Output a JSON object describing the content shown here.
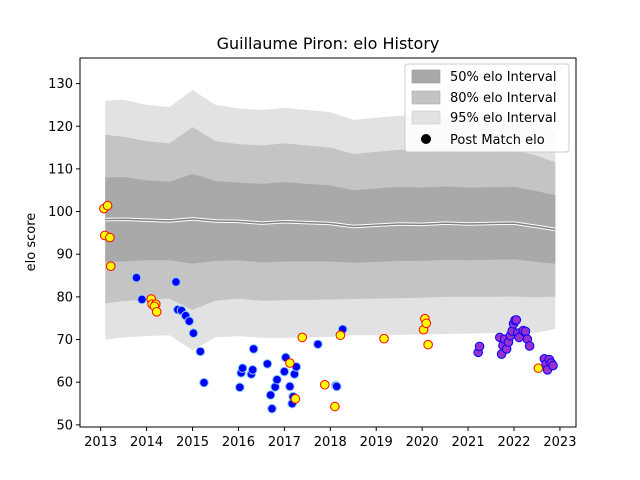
{
  "chart_data": {
    "type": "scatter",
    "title": "Guillaume Piron: elo History",
    "xlabel": "",
    "ylabel": "elo score",
    "xlim": [
      2012.55,
      2023.35
    ],
    "ylim": [
      49.5,
      136
    ],
    "xticks": [
      2013,
      2014,
      2015,
      2016,
      2017,
      2018,
      2019,
      2020,
      2021,
      2022,
      2023
    ],
    "yticks": [
      50,
      60,
      70,
      80,
      90,
      100,
      110,
      120,
      130
    ],
    "grid": false,
    "legend_position": "top-right",
    "legend": [
      {
        "label": "50% elo Interval",
        "kind": "band",
        "color": "#a9a9a9"
      },
      {
        "label": "80% elo Interval",
        "kind": "band",
        "color": "#c4c4c4"
      },
      {
        "label": "95% elo Interval",
        "kind": "band",
        "color": "#e2e2e2"
      },
      {
        "label": "Post Match elo",
        "kind": "marker",
        "color": "#000000"
      }
    ],
    "colors": {
      "band50": "#a9a9a9",
      "band80": "#c4c4c4",
      "band95": "#e2e2e2",
      "median_line": "#808080",
      "median_halo": "#ffffff",
      "win_fill": "#0000ff",
      "win_edge": "#87ceeb",
      "loss_fill": "#ffff00",
      "loss_edge": "#ff0000",
      "late_fill": "#9932cc",
      "late_edge": "#0000ff"
    },
    "median": {
      "x": [
        2013.1,
        2013.5,
        2014.0,
        2014.5,
        2015.0,
        2015.5,
        2016.0,
        2016.5,
        2017.0,
        2017.5,
        2018.0,
        2018.5,
        2019.0,
        2019.5,
        2020.0,
        2020.5,
        2021.0,
        2021.5,
        2022.0,
        2022.5,
        2022.9
      ],
      "y": [
        98.1,
        98.2,
        98.0,
        97.8,
        98.3,
        97.8,
        97.7,
        97.3,
        97.6,
        97.4,
        97.2,
        96.5,
        96.8,
        97.1,
        97.0,
        97.3,
        97.1,
        97.2,
        97.3,
        96.5,
        95.8
      ]
    },
    "band50": {
      "upper": [
        108.0,
        108.1,
        107.3,
        107.0,
        108.8,
        107.2,
        106.8,
        106.5,
        106.9,
        106.5,
        106.1,
        105.0,
        105.4,
        105.8,
        105.6,
        105.9,
        105.6,
        105.7,
        105.8,
        104.8,
        103.8
      ],
      "lower": [
        88.2,
        88.3,
        88.6,
        88.6,
        87.8,
        88.4,
        88.6,
        88.1,
        88.3,
        88.3,
        88.3,
        88.0,
        88.2,
        88.4,
        88.4,
        88.7,
        88.6,
        88.7,
        88.8,
        88.2,
        87.8
      ]
    },
    "band80": {
      "upper": [
        118.0,
        117.5,
        116.5,
        116.0,
        119.8,
        116.5,
        115.8,
        115.5,
        116.0,
        115.5,
        115.0,
        113.5,
        114.0,
        114.5,
        114.2,
        114.6,
        114.2,
        114.4,
        114.5,
        113.1,
        111.5
      ],
      "lower": [
        78.5,
        79.0,
        79.4,
        79.6,
        77.0,
        79.1,
        79.6,
        79.1,
        79.2,
        79.3,
        79.4,
        79.5,
        79.6,
        79.7,
        79.8,
        80.0,
        80.0,
        80.0,
        80.1,
        79.9,
        80.1
      ]
    },
    "band95": {
      "upper": [
        126.0,
        126.2,
        125.0,
        124.5,
        128.5,
        125.0,
        124.2,
        123.8,
        124.3,
        123.8,
        123.3,
        121.5,
        122.0,
        122.5,
        122.2,
        122.6,
        122.2,
        122.4,
        122.5,
        121.0,
        118.5
      ],
      "lower": [
        70.0,
        70.5,
        70.8,
        71.0,
        67.5,
        70.5,
        70.8,
        70.4,
        70.4,
        70.5,
        70.6,
        71.0,
        71.0,
        71.1,
        71.2,
        71.3,
        71.4,
        71.5,
        71.6,
        71.6,
        72.5
      ]
    },
    "series": [
      {
        "style": "win",
        "points": [
          [
            2013.78,
            84.5
          ],
          [
            2013.9,
            79.4
          ],
          [
            2014.64,
            83.5
          ],
          [
            2014.68,
            77.0
          ],
          [
            2014.76,
            76.8
          ],
          [
            2014.85,
            75.6
          ],
          [
            2014.93,
            74.3
          ],
          [
            2015.02,
            71.5
          ],
          [
            2015.17,
            67.2
          ],
          [
            2015.25,
            59.9
          ],
          [
            2016.03,
            58.8
          ],
          [
            2016.06,
            62.2
          ],
          [
            2016.09,
            63.3
          ],
          [
            2016.28,
            61.9
          ],
          [
            2016.31,
            62.9
          ],
          [
            2016.33,
            67.8
          ],
          [
            2016.63,
            64.3
          ],
          [
            2016.7,
            57.0
          ],
          [
            2016.73,
            53.8
          ],
          [
            2016.8,
            58.9
          ],
          [
            2016.84,
            60.6
          ],
          [
            2017.0,
            62.5
          ],
          [
            2017.03,
            65.8
          ],
          [
            2017.12,
            59.0
          ],
          [
            2017.17,
            55.0
          ],
          [
            2017.19,
            56.6
          ],
          [
            2017.22,
            61.9
          ],
          [
            2017.26,
            63.6
          ],
          [
            2017.73,
            68.9
          ],
          [
            2018.12,
            59.2
          ],
          [
            2018.14,
            59.0
          ],
          [
            2018.27,
            72.4
          ]
        ]
      },
      {
        "style": "loss",
        "points": [
          [
            2013.07,
            100.7
          ],
          [
            2013.15,
            101.4
          ],
          [
            2013.09,
            94.4
          ],
          [
            2013.2,
            93.9
          ],
          [
            2013.22,
            87.2
          ],
          [
            2014.1,
            79.5
          ],
          [
            2014.12,
            78.3
          ],
          [
            2014.2,
            78.3
          ],
          [
            2014.17,
            77.8
          ],
          [
            2014.22,
            76.5
          ],
          [
            2017.12,
            64.5
          ],
          [
            2017.24,
            56.1
          ],
          [
            2017.39,
            70.5
          ],
          [
            2017.88,
            59.4
          ],
          [
            2018.1,
            54.3
          ],
          [
            2018.22,
            71.0
          ],
          [
            2019.17,
            70.2
          ],
          [
            2020.03,
            72.3
          ],
          [
            2020.06,
            74.9
          ],
          [
            2020.09,
            73.8
          ],
          [
            2020.13,
            68.8
          ],
          [
            2022.53,
            63.3
          ]
        ]
      },
      {
        "style": "late",
        "points": [
          [
            2021.22,
            67.0
          ],
          [
            2021.25,
            68.4
          ],
          [
            2021.69,
            70.5
          ],
          [
            2021.73,
            66.6
          ],
          [
            2021.76,
            68.6
          ],
          [
            2021.8,
            70.1
          ],
          [
            2021.84,
            67.8
          ],
          [
            2021.88,
            69.4
          ],
          [
            2021.92,
            70.9
          ],
          [
            2021.96,
            72.0
          ],
          [
            2021.99,
            73.7
          ],
          [
            2022.02,
            74.5
          ],
          [
            2022.05,
            74.6
          ],
          [
            2022.08,
            71.5
          ],
          [
            2022.11,
            70.5
          ],
          [
            2022.2,
            72.1
          ],
          [
            2022.25,
            71.9
          ],
          [
            2022.29,
            70.1
          ],
          [
            2022.34,
            68.5
          ],
          [
            2022.66,
            65.5
          ],
          [
            2022.7,
            64.3
          ],
          [
            2022.73,
            62.9
          ],
          [
            2022.77,
            65.3
          ],
          [
            2022.81,
            64.5
          ],
          [
            2022.85,
            63.9
          ]
        ]
      }
    ]
  }
}
